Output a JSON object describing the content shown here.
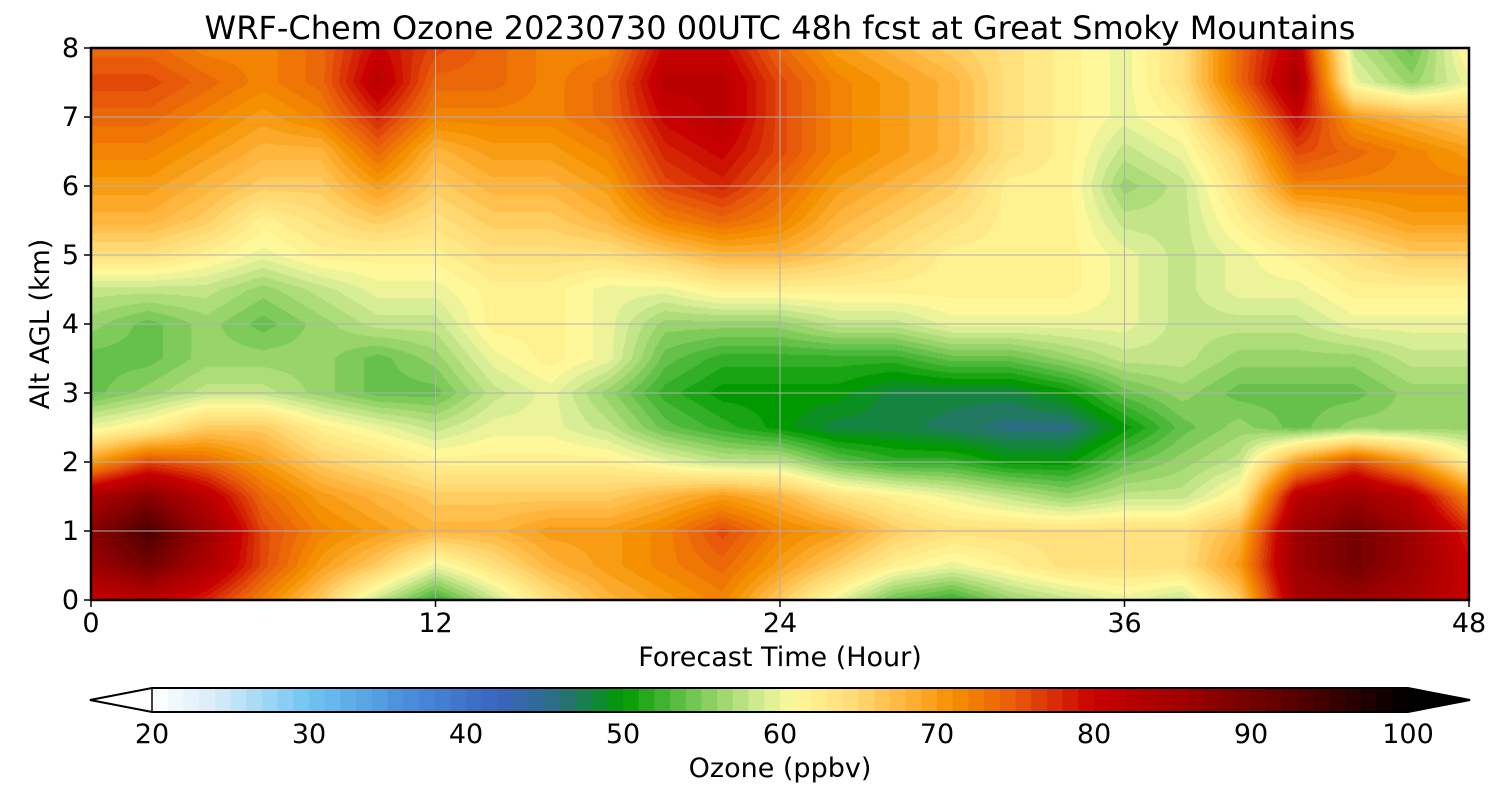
{
  "chart_data": {
    "type": "heatmap",
    "title": "WRF-Chem Ozone  20230730 00UTC 48h fcst at Great Smoky Mountains",
    "xlabel": "Forecast Time (Hour)",
    "ylabel": "Alt AGL (km)",
    "xlim": [
      0,
      48
    ],
    "ylim": [
      0,
      8
    ],
    "x_ticks": [
      0,
      12,
      24,
      36,
      48
    ],
    "y_ticks": [
      0,
      1,
      2,
      3,
      4,
      5,
      6,
      7,
      8
    ],
    "grid": true,
    "x": [
      0,
      2,
      4,
      6,
      8,
      10,
      12,
      14,
      16,
      18,
      20,
      22,
      24,
      26,
      28,
      30,
      32,
      34,
      36,
      38,
      40,
      42,
      44,
      46,
      48
    ],
    "y": [
      0,
      0.5,
      1,
      1.5,
      2,
      2.5,
      3,
      3.5,
      4,
      4.5,
      5,
      5.5,
      6,
      6.5,
      7,
      7.5,
      8
    ],
    "z": [
      [
        80,
        82,
        78,
        72,
        66,
        58,
        52,
        58,
        64,
        68,
        70,
        72,
        66,
        60,
        54,
        52,
        56,
        58,
        60,
        58,
        66,
        84,
        86,
        84,
        80
      ],
      [
        86,
        90,
        84,
        76,
        70,
        66,
        60,
        64,
        68,
        70,
        72,
        74,
        70,
        66,
        62,
        60,
        62,
        64,
        64,
        64,
        70,
        86,
        90,
        86,
        80
      ],
      [
        88,
        94,
        86,
        76,
        72,
        70,
        68,
        68,
        70,
        70,
        72,
        76,
        72,
        70,
        66,
        64,
        64,
        64,
        64,
        64,
        68,
        86,
        90,
        86,
        78
      ],
      [
        84,
        88,
        82,
        74,
        70,
        68,
        66,
        66,
        66,
        66,
        68,
        70,
        68,
        64,
        62,
        60,
        58,
        56,
        58,
        58,
        62,
        82,
        86,
        82,
        72
      ],
      [
        70,
        76,
        74,
        70,
        66,
        64,
        62,
        62,
        62,
        62,
        60,
        58,
        58,
        54,
        52,
        52,
        50,
        50,
        54,
        56,
        58,
        70,
        76,
        70,
        62
      ],
      [
        60,
        62,
        66,
        66,
        62,
        60,
        58,
        60,
        60,
        58,
        54,
        52,
        50,
        48,
        48,
        47,
        46,
        46,
        50,
        54,
        56,
        54,
        56,
        56,
        56
      ],
      [
        54,
        56,
        58,
        58,
        56,
        54,
        54,
        58,
        60,
        56,
        52,
        50,
        50,
        50,
        48,
        48,
        48,
        50,
        54,
        56,
        54,
        54,
        54,
        56,
        56
      ],
      [
        54,
        54,
        56,
        56,
        56,
        54,
        56,
        60,
        62,
        60,
        54,
        52,
        52,
        52,
        52,
        54,
        54,
        56,
        58,
        58,
        56,
        56,
        56,
        58,
        58
      ],
      [
        56,
        54,
        56,
        54,
        56,
        58,
        58,
        62,
        62,
        60,
        56,
        56,
        56,
        58,
        58,
        60,
        60,
        60,
        60,
        58,
        58,
        58,
        60,
        60,
        60
      ],
      [
        58,
        58,
        58,
        56,
        58,
        60,
        60,
        62,
        62,
        60,
        60,
        62,
        62,
        62,
        62,
        62,
        62,
        62,
        60,
        58,
        60,
        60,
        62,
        62,
        62
      ],
      [
        64,
        64,
        62,
        60,
        62,
        62,
        62,
        64,
        64,
        64,
        66,
        68,
        68,
        66,
        64,
        62,
        62,
        62,
        60,
        58,
        60,
        62,
        64,
        66,
        66
      ],
      [
        68,
        68,
        66,
        62,
        64,
        66,
        64,
        66,
        66,
        68,
        72,
        74,
        72,
        68,
        66,
        64,
        62,
        62,
        58,
        58,
        62,
        66,
        68,
        70,
        70
      ],
      [
        70,
        70,
        68,
        66,
        66,
        70,
        66,
        68,
        68,
        70,
        76,
        78,
        74,
        70,
        68,
        66,
        62,
        62,
        56,
        58,
        64,
        72,
        72,
        72,
        72
      ],
      [
        72,
        72,
        70,
        68,
        68,
        74,
        68,
        70,
        70,
        72,
        78,
        80,
        76,
        72,
        70,
        68,
        64,
        62,
        58,
        60,
        66,
        76,
        74,
        72,
        70
      ],
      [
        74,
        74,
        72,
        70,
        72,
        78,
        72,
        72,
        72,
        74,
        80,
        82,
        76,
        72,
        70,
        68,
        64,
        62,
        60,
        62,
        70,
        80,
        70,
        68,
        66
      ],
      [
        76,
        76,
        74,
        72,
        74,
        82,
        74,
        74,
        72,
        74,
        82,
        82,
        76,
        72,
        70,
        68,
        64,
        62,
        60,
        64,
        74,
        84,
        60,
        56,
        60
      ],
      [
        74,
        74,
        72,
        72,
        74,
        80,
        76,
        74,
        72,
        72,
        80,
        80,
        74,
        70,
        68,
        66,
        64,
        62,
        60,
        64,
        74,
        82,
        58,
        54,
        62
      ]
    ],
    "colorbar": {
      "label": "Ozone  (ppbv)",
      "min": 20,
      "max": 100,
      "ticks": [
        20,
        30,
        40,
        50,
        60,
        70,
        80,
        90,
        100
      ],
      "extend": "both",
      "orientation": "horizontal",
      "stops": [
        {
          "value": 20,
          "color": "#ffffff"
        },
        {
          "value": 24,
          "color": "#d8ecf8"
        },
        {
          "value": 30,
          "color": "#6ec4f2"
        },
        {
          "value": 36,
          "color": "#4a90dc"
        },
        {
          "value": 42,
          "color": "#3a64c0"
        },
        {
          "value": 46,
          "color": "#2a6e80"
        },
        {
          "value": 50,
          "color": "#009a00"
        },
        {
          "value": 53,
          "color": "#4cb83a"
        },
        {
          "value": 56,
          "color": "#98d46a"
        },
        {
          "value": 59,
          "color": "#d8ee96"
        },
        {
          "value": 61,
          "color": "#fff89a"
        },
        {
          "value": 65,
          "color": "#ffd872"
        },
        {
          "value": 68,
          "color": "#ffb43c"
        },
        {
          "value": 71,
          "color": "#f59000"
        },
        {
          "value": 75,
          "color": "#e85a0a"
        },
        {
          "value": 80,
          "color": "#c80000"
        },
        {
          "value": 86,
          "color": "#9c0000"
        },
        {
          "value": 92,
          "color": "#600000"
        },
        {
          "value": 100,
          "color": "#000000"
        }
      ]
    }
  }
}
